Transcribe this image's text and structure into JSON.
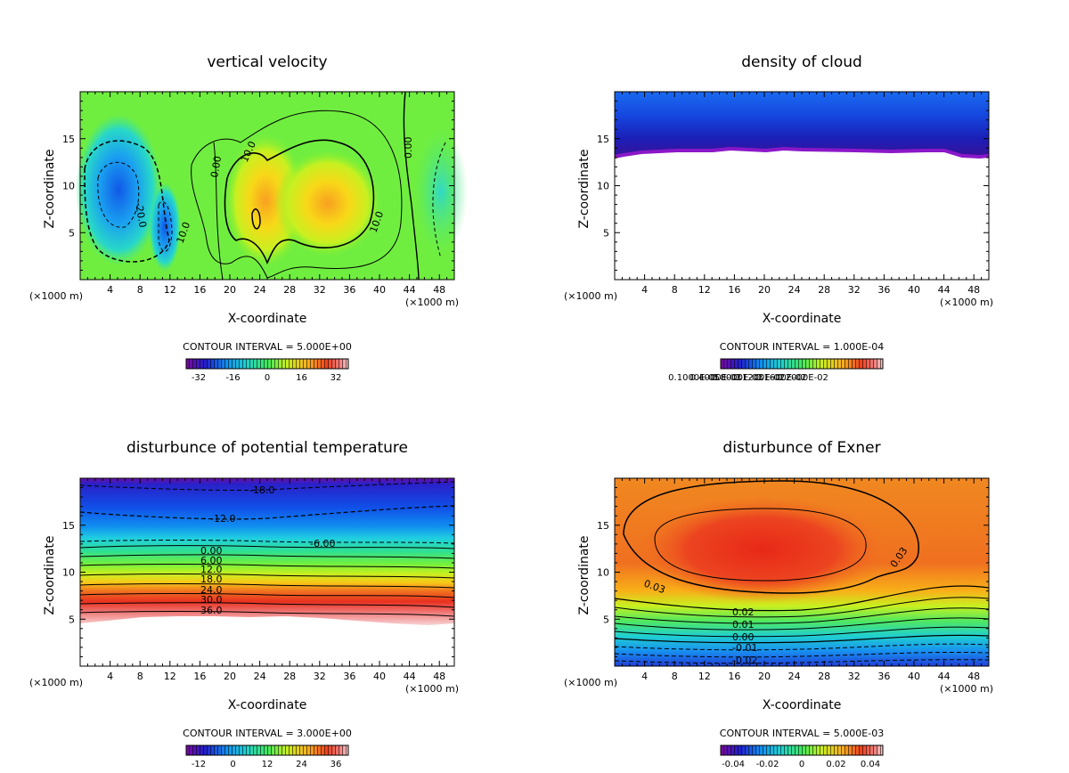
{
  "chart_data": [
    {
      "type": "heatmap",
      "title": "vertical velocity",
      "xlabel": "X-coordinate",
      "ylabel": "Z-coordinate",
      "x_unit": "(×1000 m)",
      "x_ticks": [
        "4",
        "8",
        "12",
        "16",
        "20",
        "24",
        "28",
        "32",
        "36",
        "40",
        "44",
        "48"
      ],
      "y_ticks": [
        "5",
        "10",
        "15"
      ],
      "xlim": [
        0,
        50
      ],
      "ylim": [
        0,
        20
      ],
      "contour_interval": "CONTOUR INTERVAL = 5.000E+00",
      "colorbar_labels": [
        "-32",
        "-16",
        "0",
        "16",
        "32"
      ],
      "contour_labels": [
        "-20.0",
        "10.0",
        "0.00",
        "10.0",
        "0.00",
        "10.0",
        "0.00"
      ],
      "features": [
        {
          "type": "min",
          "x": 6,
          "z": 9,
          "value": -30
        },
        {
          "type": "min",
          "x": 11,
          "z": 5,
          "value": -25
        },
        {
          "type": "max",
          "x": 24,
          "z": 8,
          "value": 25
        },
        {
          "type": "max",
          "x": 33,
          "z": 8,
          "value": 22
        }
      ]
    },
    {
      "type": "heatmap",
      "title": "density of cloud",
      "xlabel": "X-coordinate",
      "ylabel": "Z-coordinate",
      "x_unit": "(×1000 m)",
      "x_ticks": [
        "4",
        "8",
        "12",
        "16",
        "20",
        "24",
        "28",
        "32",
        "36",
        "40",
        "44",
        "48"
      ],
      "y_ticks": [
        "5",
        "10",
        "15"
      ],
      "xlim": [
        0,
        50
      ],
      "ylim": [
        0,
        20
      ],
      "contour_interval": "CONTOUR INTERVAL = 1.000E-04",
      "colorbar_labels": [
        "0.1000E-05",
        "0.4000E-03",
        "0.8000E-03",
        "0.1200E-02",
        "0.1600E-02",
        "0.2000E-02"
      ],
      "cloud_base_z": 13.5,
      "cloud_top_z": 20
    },
    {
      "type": "heatmap",
      "title": "disturbunce of potential temperature",
      "xlabel": "X-coordinate",
      "ylabel": "Z-coordinate",
      "x_unit": "(×1000 m)",
      "x_ticks": [
        "4",
        "8",
        "12",
        "16",
        "20",
        "24",
        "28",
        "32",
        "36",
        "40",
        "44",
        "48"
      ],
      "y_ticks": [
        "5",
        "10",
        "15"
      ],
      "xlim": [
        0,
        50
      ],
      "ylim": [
        0,
        20
      ],
      "contour_interval": "CONTOUR INTERVAL = 3.000E+00",
      "colorbar_labels": [
        "-12",
        "0",
        "12",
        "24",
        "36"
      ],
      "contour_labels": [
        "-18.0",
        "-12.0",
        "-6.00",
        "0.00",
        "6.00",
        "12.0",
        "18.0",
        "24.0",
        "30.0",
        "36.0"
      ]
    },
    {
      "type": "heatmap",
      "title": "disturbunce of Exner",
      "xlabel": "X-coordinate",
      "ylabel": "Z-coordinate",
      "x_unit": "(×1000 m)",
      "x_ticks": [
        "4",
        "8",
        "12",
        "16",
        "20",
        "24",
        "28",
        "32",
        "36",
        "40",
        "44",
        "48"
      ],
      "y_ticks": [
        "5",
        "10",
        "15"
      ],
      "xlim": [
        0,
        50
      ],
      "ylim": [
        0,
        20
      ],
      "contour_interval": "CONTOUR INTERVAL = 5.000E-03",
      "colorbar_labels": [
        "-0.04",
        "-0.02",
        "0",
        "0.02",
        "0.04"
      ],
      "contour_labels": [
        "0.03",
        "0.03",
        "0.02",
        "0.01",
        "0.00",
        "-0.01",
        "-0.02"
      ]
    }
  ],
  "colors": {
    "rainbow": [
      "#7a0a9a",
      "#3a18d8",
      "#1050f0",
      "#1898f0",
      "#20d0d0",
      "#30e080",
      "#60f040",
      "#a8f020",
      "#e0f010",
      "#f8c818",
      "#f89020",
      "#f05a20",
      "#e83020",
      "#f07070",
      "#f8c8c8"
    ]
  }
}
